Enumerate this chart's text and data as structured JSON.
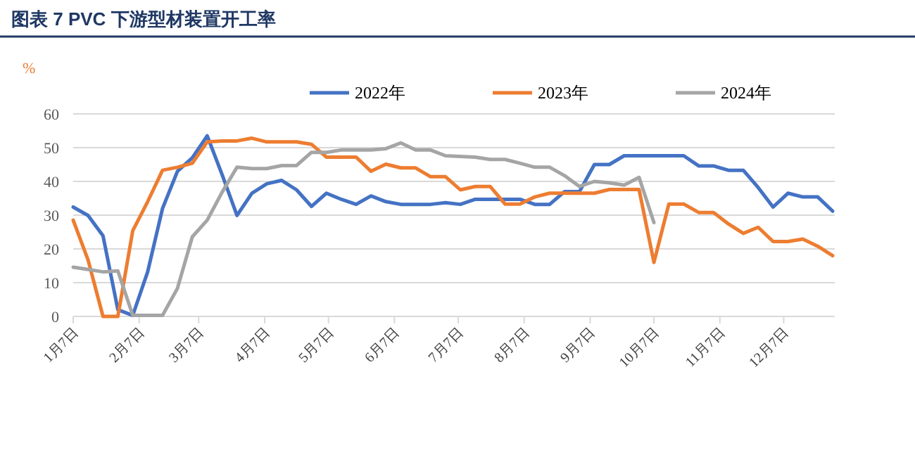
{
  "chart_data": {
    "type": "line",
    "title": "图表 7   PVC 下游型材装置开工率",
    "ylabel": "%",
    "x": [
      "--01-07",
      "--01-14",
      "--01-21",
      "--01-28",
      "--02-04",
      "--02-11",
      "--02-18",
      "--02-25",
      "--03-04",
      "--03-11",
      "--03-18",
      "--03-25",
      "--04-01",
      "--04-08",
      "--04-15",
      "--04-22",
      "--04-29",
      "--05-06",
      "--05-13",
      "--05-20",
      "--05-27",
      "--06-03",
      "--06-10",
      "--06-17",
      "--06-24",
      "--07-01",
      "--07-08",
      "--07-15",
      "--07-22",
      "--07-29",
      "--08-05",
      "--08-12",
      "--08-19",
      "--08-26",
      "--09-02",
      "--09-09",
      "--09-16",
      "--09-23",
      "--09-30",
      "--10-07",
      "--10-14",
      "--10-21",
      "--10-28",
      "--11-04",
      "--11-11",
      "--11-18",
      "--11-25",
      "--12-02",
      "--12-09",
      "--12-16",
      "--12-23",
      "--12-30"
    ],
    "series": [
      {
        "name": "2022年",
        "color": "#4472c4",
        "values": [
          32.4,
          29.9,
          23.9,
          2,
          0.3,
          13.2,
          32,
          43,
          47,
          53.5,
          42,
          29.9,
          36.5,
          39.3,
          40.3,
          37.5,
          32.6,
          36.5,
          34.7,
          33.2,
          35.7,
          34,
          33.2,
          33.2,
          33.2,
          33.7,
          33.2,
          34.7,
          34.7,
          34.7,
          34.7,
          33.2,
          33.2,
          37,
          37,
          45,
          45,
          47.6,
          47.6,
          47.6,
          47.6,
          47.6,
          44.6,
          44.6,
          43.3,
          43.3,
          38.2,
          32.4,
          36.5,
          35.4,
          35.4,
          31.2
        ]
      },
      {
        "name": "2023年",
        "color": "#ed7d31",
        "values": [
          28.5,
          16.7,
          0,
          0,
          25.4,
          34,
          43.3,
          44.2,
          45.4,
          51.7,
          52,
          52,
          52.8,
          51.7,
          51.7,
          51.7,
          51,
          47.2,
          47.2,
          47.2,
          43,
          45.1,
          44,
          44,
          41.4,
          41.4,
          37.5,
          38.5,
          38.5,
          33.3,
          33.3,
          35.4,
          36.5,
          36.5,
          36.5,
          36.5,
          37.6,
          37.6,
          37.6,
          16,
          33.3,
          33.3,
          30.8,
          30.8,
          27.4,
          24.6,
          26.4,
          22.2,
          22.2,
          22.9,
          20.8,
          18
        ]
      },
      {
        "name": "2024年",
        "color": "#a5a5a5",
        "values": [
          14.6,
          13.9,
          13.2,
          13.5,
          0.3,
          0.3,
          0.3,
          8.3,
          23.6,
          28.5,
          36.8,
          44.2,
          43.8,
          43.8,
          44.7,
          44.7,
          48.6,
          48.6,
          49.3,
          49.3,
          49.3,
          49.7,
          51.4,
          49.3,
          49.3,
          47.6,
          47.4,
          47.2,
          46.5,
          46.5,
          45.4,
          44.2,
          44.2,
          41.7,
          38.5,
          40,
          39.6,
          38.9,
          41.2,
          27.8,
          null,
          null,
          null,
          null,
          null,
          null,
          null,
          null,
          null,
          null,
          null,
          null
        ]
      }
    ],
    "xlim": [
      "--01-07",
      "--12-31"
    ],
    "xticks": [
      {
        "value": "--01-07",
        "label": "1月7日"
      },
      {
        "value": "--02-07",
        "label": "2月7日"
      },
      {
        "value": "--03-07",
        "label": "3月7日"
      },
      {
        "value": "--04-07",
        "label": "4月7日"
      },
      {
        "value": "--05-07",
        "label": "5月7日"
      },
      {
        "value": "--06-07",
        "label": "6月7日"
      },
      {
        "value": "--07-07",
        "label": "7月7日"
      },
      {
        "value": "--08-07",
        "label": "8月7日"
      },
      {
        "value": "--09-07",
        "label": "9月7日"
      },
      {
        "value": "--10-07",
        "label": "10月7日"
      },
      {
        "value": "--11-07",
        "label": "11月7日"
      },
      {
        "value": "--12-07",
        "label": "12月7日"
      }
    ],
    "ylim": [
      0,
      60
    ],
    "yticks": [
      0,
      10,
      20,
      30,
      40,
      50,
      60
    ],
    "grid": "y",
    "legend": "top",
    "marker": "none",
    "line_style": "solid"
  }
}
